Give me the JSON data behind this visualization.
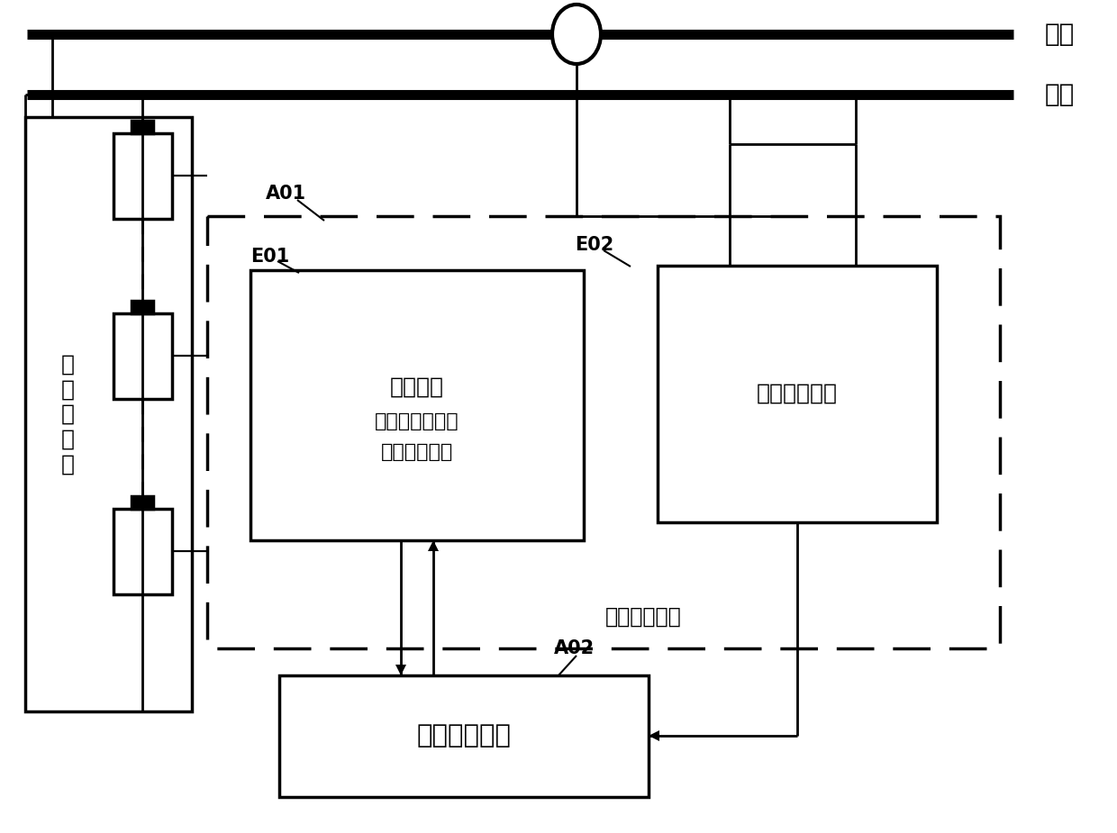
{
  "bg_color": "#ffffff",
  "line_color": "#000000",
  "bus_positive_label": "总正",
  "bus_negative_label": "总负",
  "battery_group_label": "电\n池\n组\n单\n元",
  "analog_frontend_label": "模拟前端\n（采集每串电池\n电压，温度）",
  "current_circuit_label": "电流采集电路",
  "acquisition_unit_label": "采集装置单元",
  "center_unit_label": "中心处理单元",
  "label_A01": "A01",
  "label_A02": "A02",
  "label_E01": "E01",
  "label_E02": "E02",
  "fig_w": 12.4,
  "fig_h": 9.25,
  "dpi": 100
}
